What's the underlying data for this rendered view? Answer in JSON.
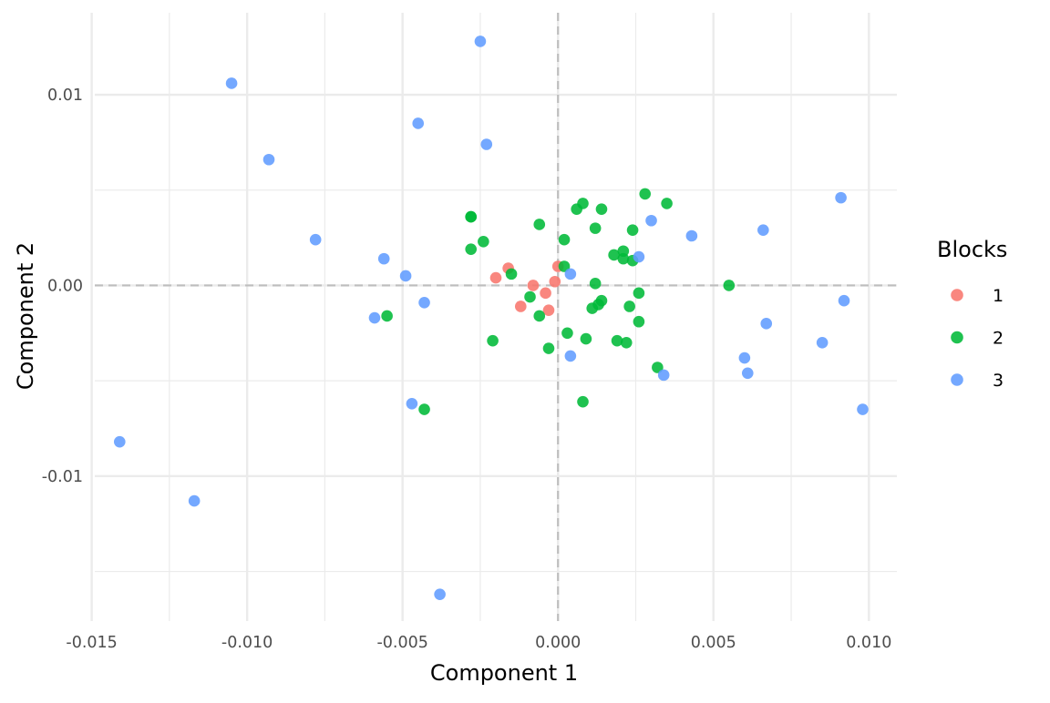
{
  "chart_data": {
    "type": "scatter",
    "title": "",
    "xlabel": "Component 1",
    "ylabel": "Component 2",
    "xlim": [
      -0.0149,
      0.0109
    ],
    "ylim": [
      -0.0176,
      0.0143
    ],
    "x_ticks": [
      -0.015,
      -0.01,
      -0.005,
      0.0,
      0.005,
      0.01
    ],
    "x_tick_labels": [
      "-0.015",
      "-0.010",
      "-0.005",
      "0.000",
      "0.005",
      "0.010"
    ],
    "y_ticks": [
      -0.01,
      0.0,
      0.01
    ],
    "y_tick_labels": [
      "-0.01",
      "0.00",
      "0.01"
    ],
    "reference_lines": {
      "x": 0,
      "y": 0,
      "style": "dashed"
    },
    "grid": true,
    "legend": {
      "title": "Blocks",
      "position": "right"
    },
    "series": [
      {
        "name": "1",
        "color": "#F8766D",
        "points": [
          [
            -0.002,
            0.0004
          ],
          [
            -0.0016,
            0.0009
          ],
          [
            -0.0012,
            -0.0011
          ],
          [
            -0.0008,
            0.0
          ],
          [
            -0.0004,
            -0.0004
          ],
          [
            -0.0003,
            -0.0013
          ],
          [
            -0.0001,
            0.0002
          ],
          [
            0.0,
            0.001
          ]
        ]
      },
      {
        "name": "2",
        "color": "#00BA38",
        "points": [
          [
            -0.0028,
            0.0036
          ],
          [
            -0.0028,
            0.0036
          ],
          [
            -0.0024,
            0.0023
          ],
          [
            -0.0028,
            0.0019
          ],
          [
            -0.0015,
            0.0006
          ],
          [
            -0.0021,
            -0.0029
          ],
          [
            -0.0055,
            -0.0016
          ],
          [
            -0.0043,
            -0.0065
          ],
          [
            -0.0009,
            -0.0006
          ],
          [
            -0.0006,
            -0.0016
          ],
          [
            -0.0006,
            0.0032
          ],
          [
            -0.0003,
            -0.0033
          ],
          [
            0.0002,
            0.001
          ],
          [
            0.0002,
            0.0024
          ],
          [
            0.0003,
            -0.0025
          ],
          [
            0.0006,
            0.004
          ],
          [
            0.0008,
            0.0043
          ],
          [
            0.0009,
            -0.0028
          ],
          [
            0.0008,
            -0.0061
          ],
          [
            0.0011,
            -0.0012
          ],
          [
            0.0012,
            0.003
          ],
          [
            0.0012,
            0.0001
          ],
          [
            0.0013,
            -0.001
          ],
          [
            0.0014,
            -0.0008
          ],
          [
            0.0014,
            0.004
          ],
          [
            0.0018,
            0.0016
          ],
          [
            0.0019,
            -0.0029
          ],
          [
            0.0021,
            0.0018
          ],
          [
            0.0021,
            0.0014
          ],
          [
            0.0022,
            -0.003
          ],
          [
            0.0023,
            -0.0011
          ],
          [
            0.0024,
            0.0013
          ],
          [
            0.0024,
            0.0029
          ],
          [
            0.0026,
            -0.0019
          ],
          [
            0.0026,
            -0.0004
          ],
          [
            0.0028,
            0.0048
          ],
          [
            0.0032,
            -0.0043
          ],
          [
            0.0035,
            0.0043
          ],
          [
            0.0055,
            0.0
          ]
        ]
      },
      {
        "name": "3",
        "color": "#619CFF",
        "points": [
          [
            -0.0141,
            -0.0082
          ],
          [
            -0.0117,
            -0.0113
          ],
          [
            -0.0105,
            0.0106
          ],
          [
            -0.0093,
            0.0066
          ],
          [
            -0.0078,
            0.0024
          ],
          [
            -0.0059,
            -0.0017
          ],
          [
            -0.0056,
            0.0014
          ],
          [
            -0.0049,
            0.0005
          ],
          [
            -0.0047,
            -0.0062
          ],
          [
            -0.0045,
            0.0085
          ],
          [
            -0.0043,
            -0.0009
          ],
          [
            -0.0038,
            -0.0162
          ],
          [
            -0.0025,
            0.0128
          ],
          [
            -0.0023,
            0.0074
          ],
          [
            0.0004,
            -0.0037
          ],
          [
            0.0004,
            0.0006
          ],
          [
            0.0026,
            0.0015
          ],
          [
            0.003,
            0.0034
          ],
          [
            0.0034,
            -0.0047
          ],
          [
            0.0043,
            0.0026
          ],
          [
            0.006,
            -0.0038
          ],
          [
            0.0061,
            -0.0046
          ],
          [
            0.0066,
            0.0029
          ],
          [
            0.0067,
            -0.002
          ],
          [
            0.0085,
            -0.003
          ],
          [
            0.0091,
            0.0046
          ],
          [
            0.0092,
            -0.0008
          ],
          [
            0.0098,
            -0.0065
          ]
        ]
      }
    ]
  }
}
